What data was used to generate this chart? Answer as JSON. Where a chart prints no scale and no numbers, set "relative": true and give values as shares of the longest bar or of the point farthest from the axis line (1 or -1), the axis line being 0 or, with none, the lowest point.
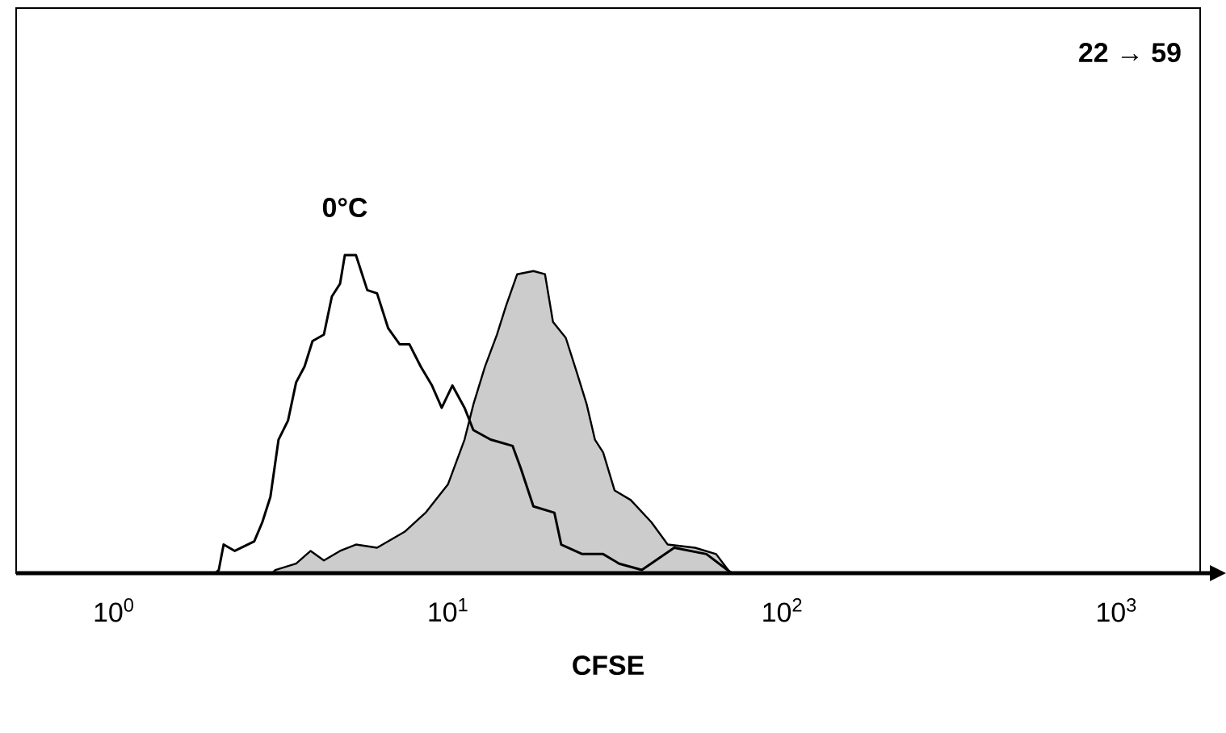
{
  "chart_data": {
    "type": "line",
    "relative": true,
    "xlabel": "CFSE",
    "log": "x",
    "xlim": [
      0.51,
      1780
    ],
    "xticks": [
      {
        "value": 1,
        "label": "10$^{0}$"
      },
      {
        "value": 10,
        "label": "10$^{1}$"
      },
      {
        "value": 100,
        "label": "10$^{2}$"
      },
      {
        "value": 1000,
        "label": "10$^{3}$"
      }
    ],
    "annotations": [
      "22 → 59"
    ],
    "series": [
      {
        "type": "area",
        "color": "#cccccc",
        "x": [
          2.97,
          3.04,
          3.51,
          3.88,
          4.25,
          4.75,
          5.3,
          6.13,
          7.41,
          8.56,
          10.0,
          11.2,
          11.9,
          12.9,
          14.0,
          14.9,
          16.1,
          18.0,
          19.5,
          20.6,
          22.5,
          24.3,
          26.0,
          27.5,
          29.1,
          31.5,
          35.2,
          40.6,
          45.4,
          54.8,
          63.4,
          70.0
        ],
        "values": [
          0,
          0.01,
          0.03,
          0.07,
          0.04,
          0.07,
          0.09,
          0.08,
          0.13,
          0.19,
          0.28,
          0.42,
          0.53,
          0.65,
          0.75,
          0.84,
          0.94,
          0.95,
          0.94,
          0.79,
          0.74,
          0.63,
          0.53,
          0.42,
          0.38,
          0.26,
          0.23,
          0.16,
          0.09,
          0.08,
          0.06,
          0
        ]
      },
      {
        "name": "0°C",
        "color": "#000000",
        "x": [
          2.01,
          2.06,
          2.13,
          2.3,
          2.63,
          2.78,
          2.94,
          3.11,
          3.32,
          3.51,
          3.72,
          3.93,
          4.25,
          4.49,
          4.75,
          4.91,
          5.3,
          5.73,
          6.13,
          6.62,
          7.16,
          7.66,
          8.28,
          8.95,
          9.57,
          10.3,
          11.2,
          11.9,
          13.4,
          15.6,
          16.5,
          18.0,
          20.8,
          21.8,
          25.2,
          29.1,
          32.5,
          38.0,
          47.5,
          59.3,
          68.5,
          70.8
        ],
        "values": [
          0,
          0.01,
          0.09,
          0.07,
          0.1,
          0.16,
          0.24,
          0.42,
          0.48,
          0.6,
          0.65,
          0.73,
          0.75,
          0.87,
          0.91,
          1.0,
          1.0,
          0.89,
          0.88,
          0.77,
          0.72,
          0.72,
          0.65,
          0.59,
          0.52,
          0.59,
          0.52,
          0.45,
          0.42,
          0.4,
          0.33,
          0.21,
          0.19,
          0.09,
          0.06,
          0.06,
          0.03,
          0.01,
          0.08,
          0.06,
          0.01,
          0
        ]
      }
    ]
  }
}
